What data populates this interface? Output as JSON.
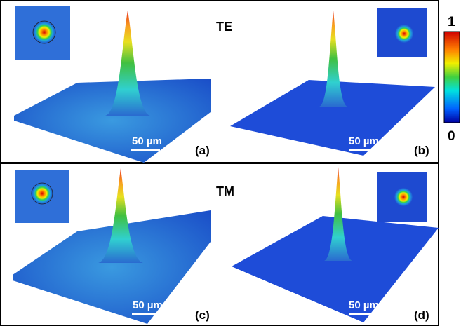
{
  "rows": [
    {
      "mode": "TE"
    },
    {
      "mode": "TM"
    }
  ],
  "panels": [
    {
      "label": "(a)",
      "scale_bar": "50 µm"
    },
    {
      "label": "(b)",
      "scale_bar": "50 µm"
    },
    {
      "label": "(c)",
      "scale_bar": "50 µm"
    },
    {
      "label": "(d)",
      "scale_bar": "50 µm"
    }
  ],
  "colorbar": {
    "max_label": "1",
    "min_label": "0"
  }
}
